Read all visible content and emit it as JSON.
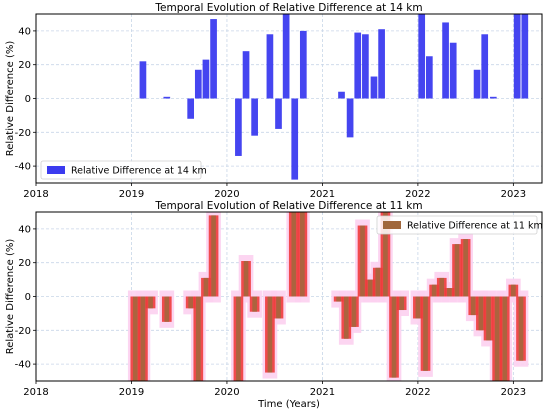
{
  "chart_data": [
    {
      "type": "bar",
      "title": "Temporal Evolution of Relative Difference at 14 km",
      "xlabel": "",
      "ylabel": "Relative Difference (%)",
      "xlim": [
        2018.0,
        2023.3
      ],
      "ylim": [
        -50,
        50
      ],
      "xticks": [
        2018,
        2019,
        2020,
        2021,
        2022,
        2023
      ],
      "yticks": [
        -40,
        -20,
        0,
        20,
        40
      ],
      "grid": true,
      "legend": "lower-left",
      "bar_width_years": 0.07,
      "series": [
        {
          "name": "Relative Difference at 14 km",
          "color": "#3b3bef",
          "x": [
            2019.12,
            2019.37,
            2019.62,
            2019.7,
            2019.78,
            2019.86,
            2020.12,
            2020.2,
            2020.29,
            2020.45,
            2020.54,
            2020.62,
            2020.71,
            2020.8,
            2021.2,
            2021.29,
            2021.37,
            2021.45,
            2021.54,
            2021.62,
            2022.04,
            2022.12,
            2022.29,
            2022.37,
            2022.62,
            2022.7,
            2022.79,
            2023.04,
            2023.12
          ],
          "values": [
            22,
            1,
            -12,
            17,
            23,
            47,
            -34,
            28,
            -22,
            38,
            -18,
            50,
            -48,
            40,
            4,
            -23,
            39,
            38,
            13,
            41,
            50,
            25,
            45,
            33,
            17,
            38,
            1,
            50,
            50
          ]
        }
      ]
    },
    {
      "type": "bar",
      "title": "Temporal Evolution of Relative Difference at 11 km",
      "xlabel": "Time (Years)",
      "ylabel": "Relative Difference (%)",
      "xlim": [
        2018.0,
        2023.3
      ],
      "ylim": [
        -50,
        50
      ],
      "xticks": [
        2018,
        2019,
        2020,
        2021,
        2022,
        2023
      ],
      "yticks": [
        -40,
        -20,
        0,
        20,
        40
      ],
      "grid": true,
      "legend": "upper-right",
      "bar_width_years": 0.07,
      "series": [
        {
          "name": "Relative Difference at 11 km",
          "color": "#a0673c",
          "shade_color": "#ef3b3b",
          "halo_color": "#fcd0f0",
          "x": [
            2019.04,
            2019.12,
            2019.2,
            2019.37,
            2019.62,
            2019.7,
            2019.78,
            2019.86,
            2020.12,
            2020.2,
            2020.29,
            2020.45,
            2020.54,
            2020.7,
            2020.79,
            2021.17,
            2021.25,
            2021.33,
            2021.42,
            2021.5,
            2021.58,
            2021.66,
            2021.75,
            2021.83,
            2022.0,
            2022.08,
            2022.17,
            2022.25,
            2022.33,
            2022.41,
            2022.5,
            2022.58,
            2022.66,
            2022.74,
            2022.83,
            2022.91,
            2023.0,
            2023.08
          ],
          "values": [
            -50,
            -50,
            -7,
            -15,
            -7,
            -50,
            11,
            48,
            -50,
            21,
            -9,
            -45,
            -13,
            50,
            50,
            -3,
            -25,
            -18,
            42,
            10,
            17,
            50,
            -48,
            -8,
            -13,
            -44,
            7,
            11,
            5,
            31,
            34,
            -11,
            -20,
            -26,
            -50,
            -50,
            7,
            -38
          ]
        }
      ]
    }
  ]
}
